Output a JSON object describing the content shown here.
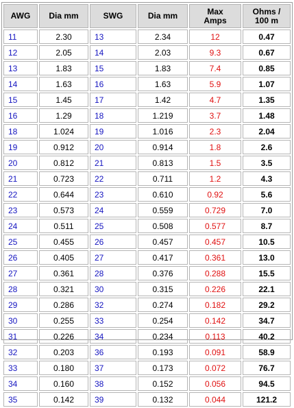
{
  "headers": {
    "awg": "AWG",
    "dia_mm_1": "Dia mm",
    "swg": "SWG",
    "dia_mm_2": "Dia mm",
    "max_amps_1": "Max",
    "max_amps_2": "Amps",
    "ohms_1": "Ohms /",
    "ohms_2": "100 m"
  },
  "rows": [
    [
      "11",
      "2.30",
      "13",
      "2.34",
      "12",
      "0.47"
    ],
    [
      "12",
      "2.05",
      "14",
      "2.03",
      "9.3",
      "0.67"
    ],
    [
      "13",
      "1.83",
      "15",
      "1.83",
      "7.4",
      "0.85"
    ],
    [
      "14",
      "1.63",
      "16",
      "1.63",
      "5.9",
      "1.07"
    ],
    [
      "15",
      "1.45",
      "17",
      "1.42",
      "4.7",
      "1.35"
    ],
    [
      "16",
      "1.29",
      "18",
      "1.219",
      "3.7",
      "1.48"
    ],
    [
      "18",
      "1.024",
      "19",
      "1.016",
      "2.3",
      "2.04"
    ],
    [
      "19",
      "0.912",
      "20",
      "0.914",
      "1.8",
      "2.6"
    ],
    [
      "20",
      "0.812",
      "21",
      "0.813",
      "1.5",
      "3.5"
    ],
    [
      "21",
      "0.723",
      "22",
      "0.711",
      "1.2",
      "4.3"
    ],
    [
      "22",
      "0.644",
      "23",
      "0.610",
      "0.92",
      "5.6"
    ],
    [
      "23",
      "0.573",
      "24",
      "0.559",
      "0.729",
      "7.0"
    ],
    [
      "24",
      "0.511",
      "25",
      "0.508",
      "0.577",
      "8.7"
    ],
    [
      "25",
      "0.455",
      "26",
      "0.457",
      "0.457",
      "10.5"
    ],
    [
      "26",
      "0.405",
      "27",
      "0.417",
      "0.361",
      "13.0"
    ],
    [
      "27",
      "0.361",
      "28",
      "0.376",
      "0.288",
      "15.5"
    ],
    [
      "28",
      "0.321",
      "30",
      "0.315",
      "0.226",
      "22.1"
    ],
    [
      "29",
      "0.286",
      "32",
      "0.274",
      "0.182",
      "29.2"
    ],
    [
      "30",
      "0.255",
      "33",
      "0.254",
      "0.142",
      "34.7"
    ],
    [
      "31",
      "0.226",
      "34",
      "0.234",
      "0.113",
      "40.2"
    ],
    [
      "32",
      "0.203",
      "36",
      "0.193",
      "0.091",
      "58.9"
    ],
    [
      "33",
      "0.180",
      "37",
      "0.173",
      "0.072",
      "76.7"
    ],
    [
      "34",
      "0.160",
      "38",
      "0.152",
      "0.056",
      "94.5"
    ],
    [
      "35",
      "0.142",
      "39",
      "0.132",
      "0.044",
      "121.2"
    ]
  ]
}
